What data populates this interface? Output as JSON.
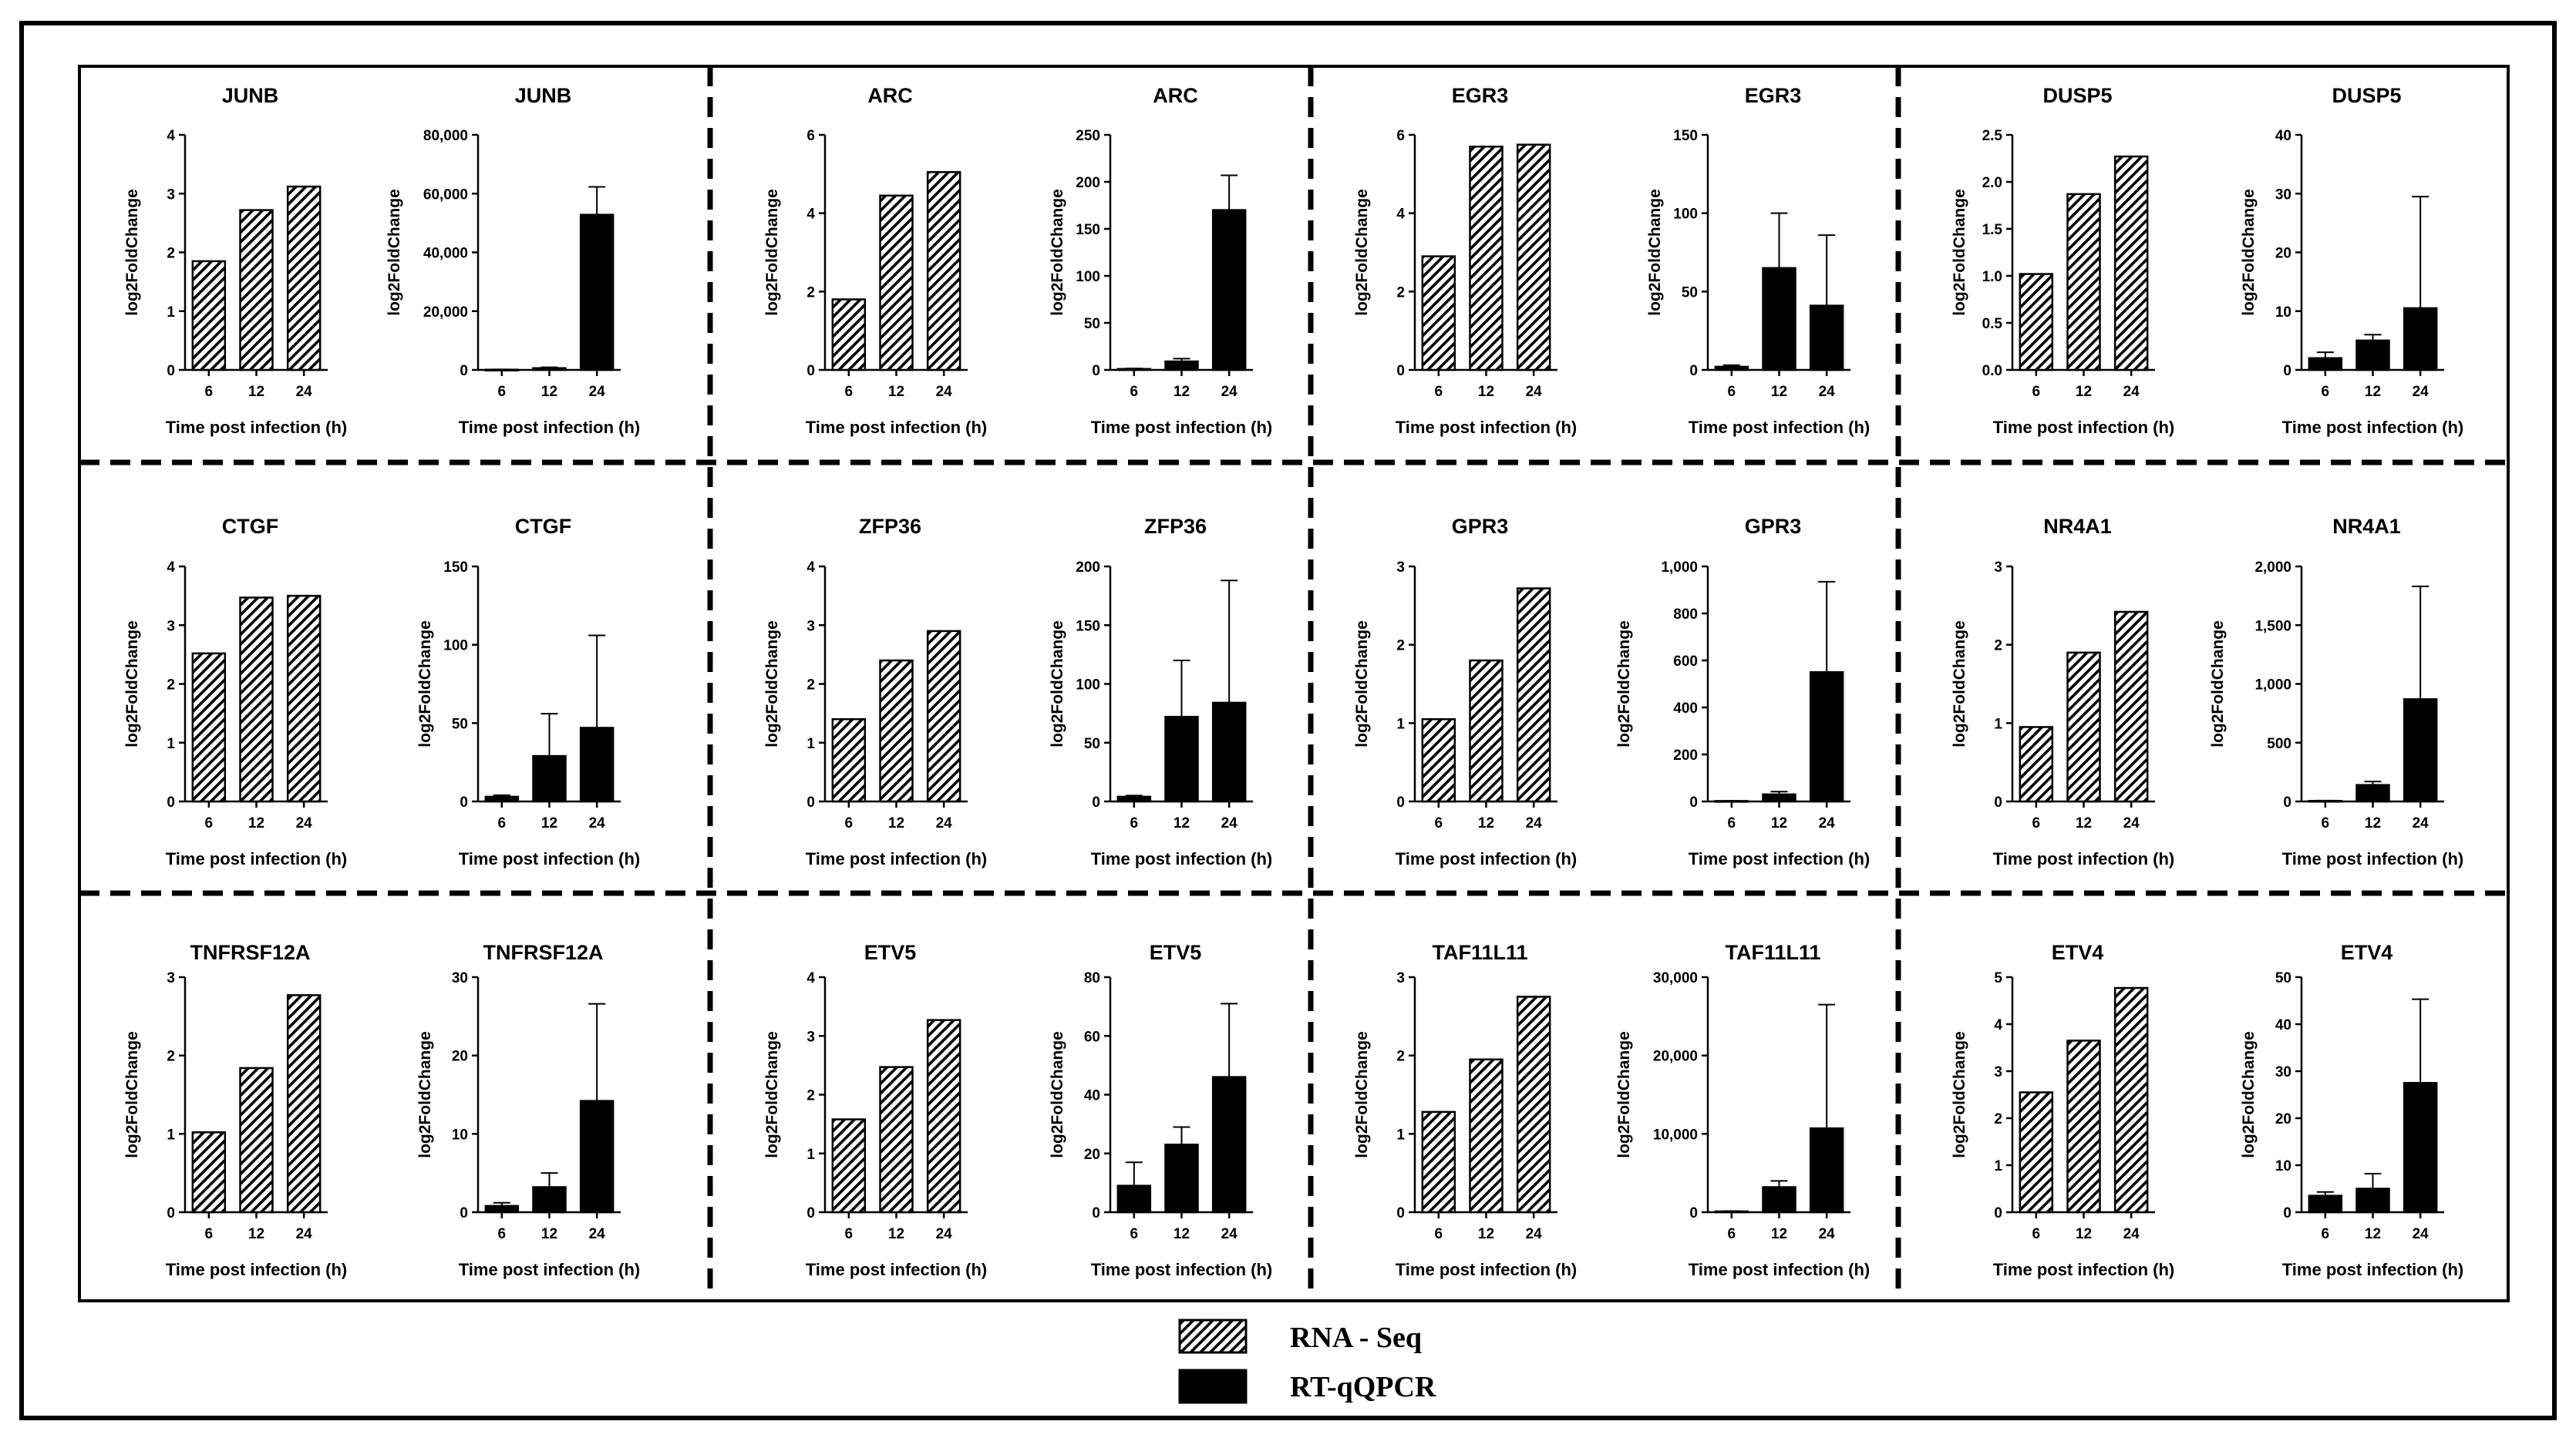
{
  "legend": {
    "rna_label": "RNA - Seq",
    "qpcr_label": "RT-qQPCR"
  },
  "chart_data": [
    {
      "type": "bar",
      "series": "RNA-Seq",
      "title": "JUNB",
      "categories": [
        "6",
        "12",
        "24"
      ],
      "values": [
        1.85,
        2.72,
        3.12
      ],
      "ylim": [
        0,
        4
      ],
      "yticks": [
        "0",
        "1",
        "2",
        "3",
        "4"
      ],
      "xlabel": "Time post infection (h)",
      "ylabel": "log2FoldChange"
    },
    {
      "type": "bar",
      "series": "RT-qQPCR",
      "title": "JUNB",
      "categories": [
        "6",
        "12",
        "24"
      ],
      "values": [
        80,
        600,
        52800
      ],
      "errors": [
        100,
        300,
        9500
      ],
      "ylim": [
        0,
        80000
      ],
      "yticks": [
        "0",
        "20,000",
        "40,000",
        "60,000",
        "80,000"
      ],
      "xlabel": "Time post infection (h)",
      "ylabel": "log2FoldChange"
    },
    {
      "type": "bar",
      "series": "RNA-Seq",
      "title": "ARC",
      "categories": [
        "6",
        "12",
        "24"
      ],
      "values": [
        1.8,
        4.45,
        5.05
      ],
      "ylim": [
        0,
        6
      ],
      "yticks": [
        "0",
        "2",
        "4",
        "6"
      ],
      "xlabel": "Time post infection (h)",
      "ylabel": "log2FoldChange"
    },
    {
      "type": "bar",
      "series": "RT-qQPCR",
      "title": "ARC",
      "categories": [
        "6",
        "12",
        "24"
      ],
      "values": [
        1,
        9,
        170
      ],
      "errors": [
        0.5,
        3,
        37
      ],
      "ylim": [
        0,
        250
      ],
      "yticks": [
        "0",
        "50",
        "100",
        "150",
        "200",
        "250"
      ],
      "xlabel": "Time post infection (h)",
      "ylabel": "log2FoldChange"
    },
    {
      "type": "bar",
      "series": "RNA-Seq",
      "title": "EGR3",
      "categories": [
        "6",
        "12",
        "24"
      ],
      "values": [
        2.9,
        5.7,
        5.75
      ],
      "ylim": [
        0,
        6
      ],
      "yticks": [
        "0",
        "2",
        "4",
        "6"
      ],
      "xlabel": "Time post infection (h)",
      "ylabel": "log2FoldChange"
    },
    {
      "type": "bar",
      "series": "RT-qQPCR",
      "title": "EGR3",
      "categories": [
        "6",
        "12",
        "24"
      ],
      "values": [
        2,
        65,
        41
      ],
      "errors": [
        1,
        35,
        45
      ],
      "ylim": [
        0,
        150
      ],
      "yticks": [
        "0",
        "50",
        "100",
        "150"
      ],
      "xlabel": "Time post infection (h)",
      "ylabel": "log2FoldChange"
    },
    {
      "type": "bar",
      "series": "RNA-Seq",
      "title": "DUSP5",
      "categories": [
        "6",
        "12",
        "24"
      ],
      "values": [
        1.02,
        1.87,
        2.27
      ],
      "ylim": [
        0,
        2.5
      ],
      "yticks": [
        "0.0",
        "0.5",
        "1.0",
        "1.5",
        "2.0",
        "2.5"
      ],
      "xlabel": "Time post infection (h)",
      "ylabel": "log2FoldChange"
    },
    {
      "type": "bar",
      "series": "RT-qQPCR",
      "title": "DUSP5",
      "categories": [
        "6",
        "12",
        "24"
      ],
      "values": [
        2,
        5,
        10.5
      ],
      "errors": [
        1,
        1,
        19
      ],
      "ylim": [
        0,
        40
      ],
      "yticks": [
        "0",
        "10",
        "20",
        "30",
        "40"
      ],
      "xlabel": "Time post infection (h)",
      "ylabel": "log2FoldChange"
    },
    {
      "type": "bar",
      "series": "RNA-Seq",
      "title": "CTGF",
      "categories": [
        "6",
        "12",
        "24"
      ],
      "values": [
        2.52,
        3.47,
        3.5
      ],
      "ylim": [
        0,
        4
      ],
      "yticks": [
        "0",
        "1",
        "2",
        "3",
        "4"
      ],
      "xlabel": "Time post infection (h)",
      "ylabel": "log2FoldChange"
    },
    {
      "type": "bar",
      "series": "RT-qQPCR",
      "title": "CTGF",
      "categories": [
        "6",
        "12",
        "24"
      ],
      "values": [
        3,
        29,
        47
      ],
      "errors": [
        1,
        27,
        59
      ],
      "ylim": [
        0,
        150
      ],
      "yticks": [
        "0",
        "50",
        "100",
        "150"
      ],
      "xlabel": "Time post infection (h)",
      "ylabel": "log2FoldChange"
    },
    {
      "type": "bar",
      "series": "RNA-Seq",
      "title": "ZFP36",
      "categories": [
        "6",
        "12",
        "24"
      ],
      "values": [
        1.4,
        2.4,
        2.9
      ],
      "ylim": [
        0,
        4
      ],
      "yticks": [
        "0",
        "1",
        "2",
        "3",
        "4"
      ],
      "xlabel": "Time post infection (h)",
      "ylabel": "log2FoldChange"
    },
    {
      "type": "bar",
      "series": "RT-qQPCR",
      "title": "ZFP36",
      "categories": [
        "6",
        "12",
        "24"
      ],
      "values": [
        4,
        72,
        84
      ],
      "errors": [
        1,
        48,
        104
      ],
      "ylim": [
        0,
        200
      ],
      "yticks": [
        "0",
        "50",
        "100",
        "150",
        "200"
      ],
      "xlabel": "Time post infection (h)",
      "ylabel": "log2FoldChange"
    },
    {
      "type": "bar",
      "series": "RNA-Seq",
      "title": "GPR3",
      "categories": [
        "6",
        "12",
        "24"
      ],
      "values": [
        1.05,
        1.8,
        2.72
      ],
      "ylim": [
        0,
        3
      ],
      "yticks": [
        "0",
        "1",
        "2",
        "3"
      ],
      "xlabel": "Time post infection (h)",
      "ylabel": "log2FoldChange"
    },
    {
      "type": "bar",
      "series": "RT-qQPCR",
      "title": "GPR3",
      "categories": [
        "6",
        "12",
        "24"
      ],
      "values": [
        2,
        30,
        550
      ],
      "errors": [
        1,
        12,
        385
      ],
      "ylim": [
        0,
        1000
      ],
      "yticks": [
        "0",
        "200",
        "400",
        "600",
        "800",
        "1,000"
      ],
      "xlabel": "Time post infection (h)",
      "ylabel": "log2FoldChange"
    },
    {
      "type": "bar",
      "series": "RNA-Seq",
      "title": "NR4A1",
      "categories": [
        "6",
        "12",
        "24"
      ],
      "values": [
        0.95,
        1.9,
        2.42
      ],
      "ylim": [
        0,
        3
      ],
      "yticks": [
        "0",
        "1",
        "2",
        "3"
      ],
      "xlabel": "Time post infection (h)",
      "ylabel": "log2FoldChange"
    },
    {
      "type": "bar",
      "series": "RT-qQPCR",
      "title": "NR4A1",
      "categories": [
        "6",
        "12",
        "24"
      ],
      "values": [
        5,
        140,
        870
      ],
      "errors": [
        2,
        30,
        960
      ],
      "ylim": [
        0,
        2000
      ],
      "yticks": [
        "0",
        "500",
        "1,000",
        "1,500",
        "2,000"
      ],
      "xlabel": "Time post infection (h)",
      "ylabel": "log2FoldChange"
    },
    {
      "type": "bar",
      "series": "RNA-Seq",
      "title": "TNFRSF12A",
      "categories": [
        "6",
        "12",
        "24"
      ],
      "values": [
        1.02,
        1.84,
        2.77
      ],
      "ylim": [
        0,
        3
      ],
      "yticks": [
        "0",
        "1",
        "2",
        "3"
      ],
      "xlabel": "Time post infection (h)",
      "ylabel": "log2FoldChange"
    },
    {
      "type": "bar",
      "series": "RT-qQPCR",
      "title": "TNFRSF12A",
      "categories": [
        "6",
        "12",
        "24"
      ],
      "values": [
        0.8,
        3.2,
        14.2
      ],
      "errors": [
        0.4,
        1.8,
        12.4
      ],
      "ylim": [
        0,
        30
      ],
      "yticks": [
        "0",
        "10",
        "20",
        "30"
      ],
      "xlabel": "Time post infection (h)",
      "ylabel": "log2FoldChange"
    },
    {
      "type": "bar",
      "series": "RNA-Seq",
      "title": "ETV5",
      "categories": [
        "6",
        "12",
        "24"
      ],
      "values": [
        1.58,
        2.47,
        3.27
      ],
      "ylim": [
        0,
        4
      ],
      "yticks": [
        "0",
        "1",
        "2",
        "3",
        "4"
      ],
      "xlabel": "Time post infection (h)",
      "ylabel": "log2FoldChange"
    },
    {
      "type": "bar",
      "series": "RT-qQPCR",
      "title": "ETV5",
      "categories": [
        "6",
        "12",
        "24"
      ],
      "values": [
        9,
        23,
        46
      ],
      "errors": [
        8,
        6,
        25
      ],
      "ylim": [
        0,
        80
      ],
      "yticks": [
        "0",
        "20",
        "40",
        "60",
        "80"
      ],
      "xlabel": "Time post infection (h)",
      "ylabel": "log2FoldChange"
    },
    {
      "type": "bar",
      "series": "RNA-Seq",
      "title": "TAF11L11",
      "categories": [
        "6",
        "12",
        "24"
      ],
      "values": [
        1.28,
        1.95,
        2.75
      ],
      "ylim": [
        0,
        3
      ],
      "yticks": [
        "0",
        "1",
        "2",
        "3"
      ],
      "xlabel": "Time post infection (h)",
      "ylabel": "log2FoldChange"
    },
    {
      "type": "bar",
      "series": "RT-qQPCR",
      "title": "TAF11L11",
      "categories": [
        "6",
        "12",
        "24"
      ],
      "values": [
        100,
        3200,
        10700
      ],
      "errors": [
        50,
        800,
        15800
      ],
      "ylim": [
        0,
        30000
      ],
      "yticks": [
        "0",
        "10,000",
        "20,000",
        "30,000"
      ],
      "xlabel": "Time post infection (h)",
      "ylabel": "log2FoldChange"
    },
    {
      "type": "bar",
      "series": "RNA-Seq",
      "title": "ETV4",
      "categories": [
        "6",
        "12",
        "24"
      ],
      "values": [
        2.55,
        3.65,
        4.77
      ],
      "ylim": [
        0,
        5
      ],
      "yticks": [
        "0",
        "1",
        "2",
        "3",
        "4",
        "5"
      ],
      "xlabel": "Time post infection (h)",
      "ylabel": "log2FoldChange"
    },
    {
      "type": "bar",
      "series": "RT-qQPCR",
      "title": "ETV4",
      "categories": [
        "6",
        "12",
        "24"
      ],
      "values": [
        3.5,
        5,
        27.5
      ],
      "errors": [
        0.8,
        3.2,
        17.8
      ],
      "ylim": [
        0,
        50
      ],
      "yticks": [
        "0",
        "10",
        "20",
        "30",
        "40",
        "50"
      ],
      "xlabel": "Time post infection (h)",
      "ylabel": "log2FoldChange"
    }
  ]
}
